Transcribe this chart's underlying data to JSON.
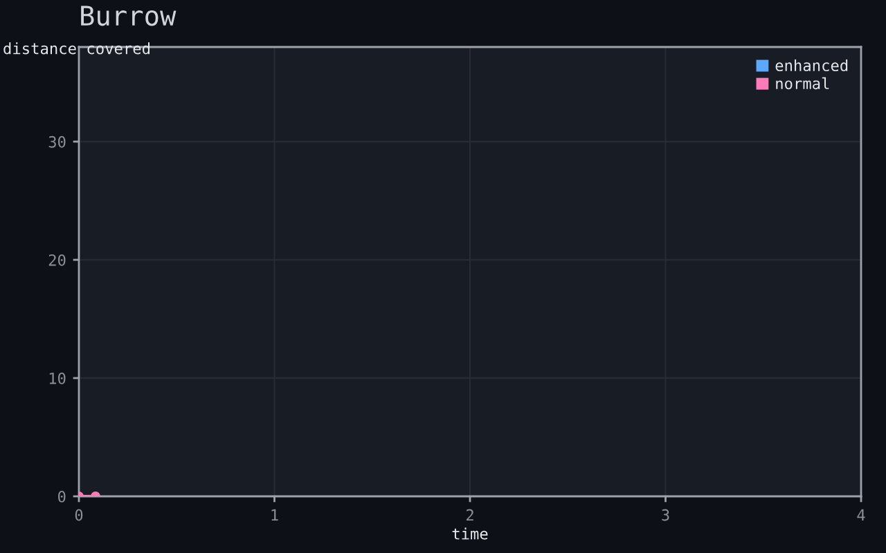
{
  "chart_data": {
    "type": "line",
    "title": "Burrow",
    "xlabel": "time",
    "ylabel": "distance covered",
    "x": [
      0,
      0.085
    ],
    "series": [
      {
        "name": "enhanced",
        "color": "#5aa9ff",
        "values": [
          null,
          null
        ]
      },
      {
        "name": "normal",
        "color": "#ff7ab8",
        "values": [
          0,
          0
        ]
      }
    ],
    "xlim": [
      0,
      4
    ],
    "xticks": [
      0,
      1,
      2,
      3,
      4
    ],
    "ylim": [
      0,
      38
    ],
    "yticks": [
      0,
      10,
      20,
      30
    ],
    "grid": true,
    "legend": "top right",
    "marker": "circle",
    "line_style": "solid"
  }
}
